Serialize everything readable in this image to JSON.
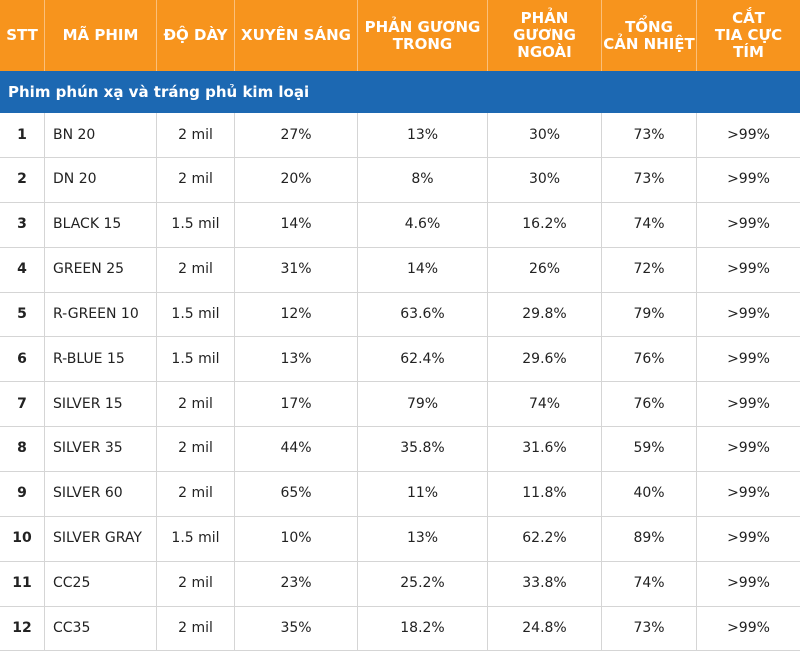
{
  "table": {
    "header": [
      [
        "STT"
      ],
      [
        "MÃ PHIM"
      ],
      [
        "ĐỘ DÀY"
      ],
      [
        "XUYÊN SÁNG"
      ],
      [
        "PHẢN GƯƠNG",
        "TRONG"
      ],
      [
        "PHẢN GƯƠNG",
        "NGOÀI"
      ],
      [
        "TỔNG",
        "CẢN NHIỆT"
      ],
      [
        "CẮT",
        "TIA CỰC TÍM"
      ]
    ],
    "section": "Phim phún xạ và tráng phủ kim loại",
    "rows": [
      [
        "1",
        "BN 20",
        "2 mil",
        "27%",
        "13%",
        "30%",
        "73%",
        ">99%"
      ],
      [
        "2",
        "DN 20",
        "2 mil",
        "20%",
        "8%",
        "30%",
        "73%",
        ">99%"
      ],
      [
        "3",
        "BLACK 15",
        "1.5 mil",
        "14%",
        "4.6%",
        "16.2%",
        "74%",
        ">99%"
      ],
      [
        "4",
        "GREEN 25",
        "2 mil",
        "31%",
        "14%",
        "26%",
        "72%",
        ">99%"
      ],
      [
        "5",
        "R-GREEN 10",
        "1.5 mil",
        "12%",
        "63.6%",
        "29.8%",
        "79%",
        ">99%"
      ],
      [
        "6",
        "R-BLUE 15",
        "1.5 mil",
        "13%",
        "62.4%",
        "29.6%",
        "76%",
        ">99%"
      ],
      [
        "7",
        "SILVER 15",
        "2 mil",
        "17%",
        "79%",
        "74%",
        "76%",
        ">99%"
      ],
      [
        "8",
        "SILVER 35",
        "2 mil",
        "44%",
        "35.8%",
        "31.6%",
        "59%",
        ">99%"
      ],
      [
        "9",
        "SILVER 60",
        "2 mil",
        "65%",
        "11%",
        "11.8%",
        "40%",
        ">99%"
      ],
      [
        "10",
        "SILVER GRAY",
        "1.5 mil",
        "10%",
        "13%",
        "62.2%",
        "89%",
        ">99%"
      ],
      [
        "11",
        "CC25",
        "2 mil",
        "23%",
        "25.2%",
        "33.8%",
        "74%",
        ">99%"
      ],
      [
        "12",
        "CC35",
        "2 mil",
        "35%",
        "18.2%",
        "24.8%",
        "73%",
        ">99%"
      ]
    ]
  }
}
